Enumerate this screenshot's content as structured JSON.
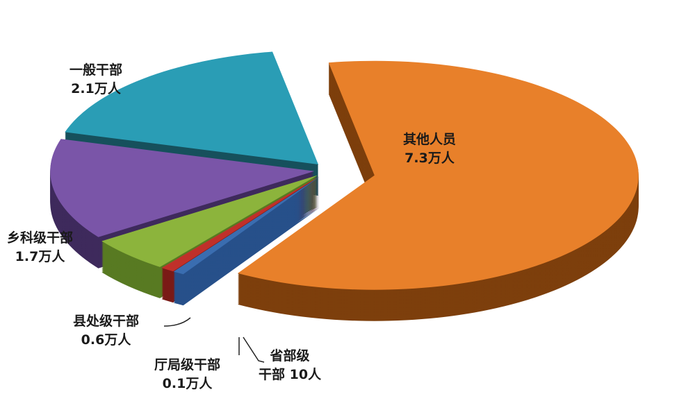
{
  "chart_data": {
    "type": "pie",
    "style": "3d-exploded",
    "unit_note": "",
    "slices": [
      {
        "name": "其他人员",
        "value": 73000,
        "label": "7.3万人",
        "color": "#e8802a",
        "side": "#7d3f0c"
      },
      {
        "name": "省部级干部",
        "name_line1": "省部级",
        "name_line2": "干部",
        "value": 10,
        "label": "10人",
        "color": "#3a6db0",
        "side": "#27508a"
      },
      {
        "name": "厅局级干部",
        "value": 1000,
        "label": "0.1万人",
        "color": "#c0302a",
        "side": "#7a1a16"
      },
      {
        "name": "县处级干部",
        "value": 6000,
        "label": "0.6万人",
        "color": "#8cb43c",
        "side": "#587a22"
      },
      {
        "name": "乡科级干部",
        "value": 17000,
        "label": "1.7万人",
        "color": "#7a55a8",
        "side": "#3e2a5c"
      },
      {
        "name": "一般干部",
        "value": 21000,
        "label": "2.1万人",
        "color": "#2a9db5",
        "side": "#16505c"
      }
    ]
  }
}
